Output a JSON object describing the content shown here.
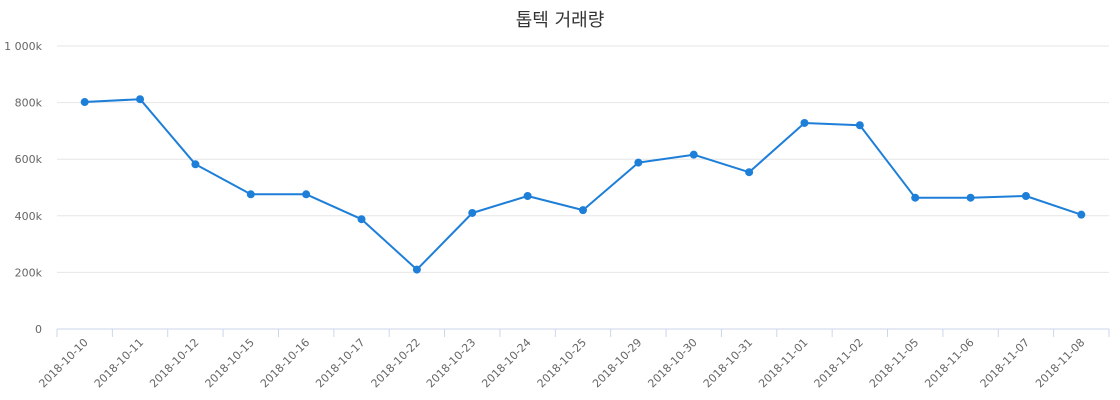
{
  "chart_data": {
    "type": "line",
    "title": "톱텍 거래량",
    "xlabel": "",
    "ylabel": "",
    "ylim": [
      0,
      1000000
    ],
    "y_ticks": [
      {
        "value": 0,
        "label": "0"
      },
      {
        "value": 200000,
        "label": "200k"
      },
      {
        "value": 400000,
        "label": "400k"
      },
      {
        "value": 600000,
        "label": "600k"
      },
      {
        "value": 800000,
        "label": "800k"
      },
      {
        "value": 1000000,
        "label": "1 000k"
      }
    ],
    "categories": [
      "2018-10-10",
      "2018-10-11",
      "2018-10-12",
      "2018-10-15",
      "2018-10-16",
      "2018-10-17",
      "2018-10-22",
      "2018-10-23",
      "2018-10-24",
      "2018-10-25",
      "2018-10-29",
      "2018-10-30",
      "2018-10-31",
      "2018-11-01",
      "2018-11-02",
      "2018-11-05",
      "2018-11-06",
      "2018-11-07",
      "2018-11-08"
    ],
    "series": [
      {
        "values": [
          802000,
          812000,
          582000,
          476000,
          476000,
          388000,
          210000,
          410000,
          470000,
          420000,
          588000,
          616000,
          554000,
          728000,
          720000,
          464000,
          464000,
          470000,
          404000
        ]
      }
    ],
    "grid": true,
    "legend": "none",
    "line_color": "#1e7fd8"
  }
}
